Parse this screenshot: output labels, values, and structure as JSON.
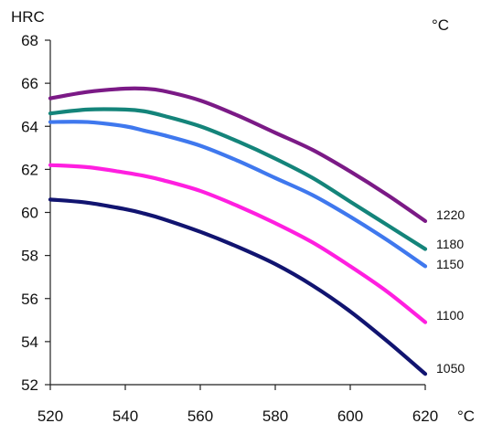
{
  "chart_data": {
    "type": "line",
    "ylabel": "HRC",
    "xlabel": "°C",
    "legend_unit": "°C",
    "xlim": [
      520,
      620
    ],
    "ylim": [
      52,
      68
    ],
    "x_ticks": [
      520,
      540,
      560,
      580,
      600,
      620
    ],
    "y_ticks": [
      52,
      54,
      56,
      58,
      60,
      62,
      64,
      66,
      68
    ],
    "grid": false,
    "x": [
      520,
      530,
      540,
      545,
      550,
      560,
      570,
      580,
      590,
      600,
      610,
      620
    ],
    "series": [
      {
        "name": "1220",
        "color": "#7b1a86",
        "values": [
          65.3,
          65.6,
          65.75,
          65.75,
          65.65,
          65.2,
          64.5,
          63.7,
          62.9,
          61.9,
          60.8,
          59.6
        ]
      },
      {
        "name": "1180",
        "color": "#14847a",
        "values": [
          64.6,
          64.78,
          64.78,
          64.7,
          64.5,
          64.0,
          63.3,
          62.5,
          61.6,
          60.5,
          59.4,
          58.3
        ]
      },
      {
        "name": "1150",
        "color": "#3f78ee",
        "values": [
          64.2,
          64.2,
          64.0,
          63.8,
          63.6,
          63.1,
          62.4,
          61.6,
          60.8,
          59.8,
          58.7,
          57.5
        ]
      },
      {
        "name": "1100",
        "color": "#ff1fe0",
        "values": [
          62.2,
          62.1,
          61.85,
          61.7,
          61.5,
          61.0,
          60.3,
          59.5,
          58.6,
          57.5,
          56.3,
          54.9
        ]
      },
      {
        "name": "1050",
        "color": "#111470",
        "values": [
          60.6,
          60.45,
          60.15,
          59.95,
          59.7,
          59.1,
          58.4,
          57.6,
          56.6,
          55.4,
          54.0,
          52.5
        ]
      }
    ]
  }
}
